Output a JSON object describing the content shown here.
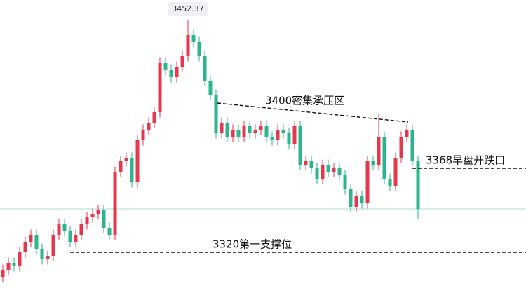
{
  "chart_data": {
    "type": "candlestick",
    "ylim": [
      3292.8,
      3464
    ],
    "up_color": "#e5374e",
    "down_color": "#2ab58b",
    "price_line": 3344.8,
    "price_line_color": "#a8dcd2",
    "candles": [
      [
        3306,
        3313,
        3303,
        3310
      ],
      [
        3310,
        3317,
        3307,
        3314
      ],
      [
        3314,
        3317,
        3309,
        3312
      ],
      [
        3312,
        3323,
        3309,
        3320
      ],
      [
        3320,
        3329,
        3317,
        3326
      ],
      [
        3326,
        3333,
        3323,
        3330
      ],
      [
        3330,
        3333,
        3319,
        3322
      ],
      [
        3322,
        3325,
        3313,
        3316
      ],
      [
        3316,
        3321,
        3313,
        3318
      ],
      [
        3318,
        3333,
        3315,
        3330
      ],
      [
        3330,
        3339,
        3327,
        3336
      ],
      [
        3336,
        3339,
        3329,
        3332
      ],
      [
        3332,
        3335,
        3323,
        3326
      ],
      [
        3326,
        3333,
        3323,
        3330
      ],
      [
        3330,
        3339,
        3327,
        3336
      ],
      [
        3336,
        3343,
        3333,
        3340
      ],
      [
        3340,
        3345,
        3337,
        3342
      ],
      [
        3342,
        3347,
        3339,
        3344
      ],
      [
        3344,
        3347,
        3331,
        3334
      ],
      [
        3334,
        3337,
        3327,
        3330
      ],
      [
        3330,
        3369,
        3327,
        3366
      ],
      [
        3366,
        3375,
        3363,
        3372
      ],
      [
        3372,
        3377,
        3369,
        3374
      ],
      [
        3374,
        3377,
        3357,
        3360
      ],
      [
        3360,
        3387,
        3357,
        3384
      ],
      [
        3384,
        3393,
        3381,
        3390
      ],
      [
        3390,
        3397,
        3387,
        3394
      ],
      [
        3394,
        3403,
        3391,
        3400
      ],
      [
        3400,
        3431,
        3397,
        3428
      ],
      [
        3428,
        3431,
        3421,
        3424
      ],
      [
        3424,
        3427,
        3417,
        3420
      ],
      [
        3420,
        3429,
        3417,
        3426
      ],
      [
        3426,
        3435,
        3423,
        3432
      ],
      [
        3432,
        3452.37,
        3429,
        3444
      ],
      [
        3444,
        3447,
        3437,
        3440
      ],
      [
        3440,
        3443,
        3429,
        3432
      ],
      [
        3432,
        3435,
        3415,
        3418
      ],
      [
        3418,
        3421,
        3407,
        3410
      ],
      [
        3410,
        3413,
        3385,
        3388
      ],
      [
        3388,
        3397,
        3385,
        3394
      ],
      [
        3394,
        3397,
        3383,
        3386
      ],
      [
        3386,
        3393,
        3383,
        3390
      ],
      [
        3390,
        3393,
        3383,
        3386
      ],
      [
        3386,
        3395,
        3383,
        3392
      ],
      [
        3392,
        3395,
        3385,
        3388
      ],
      [
        3388,
        3393,
        3385,
        3390
      ],
      [
        3390,
        3395,
        3387,
        3392
      ],
      [
        3392,
        3395,
        3383,
        3386
      ],
      [
        3386,
        3389,
        3381,
        3384
      ],
      [
        3384,
        3393,
        3381,
        3390
      ],
      [
        3390,
        3393,
        3385,
        3388
      ],
      [
        3388,
        3391,
        3379,
        3382
      ],
      [
        3382,
        3395,
        3379,
        3392
      ],
      [
        3392,
        3395,
        3367,
        3370
      ],
      [
        3370,
        3375,
        3367,
        3372
      ],
      [
        3372,
        3375,
        3365,
        3368
      ],
      [
        3368,
        3371,
        3359,
        3362
      ],
      [
        3362,
        3373,
        3359,
        3370
      ],
      [
        3370,
        3373,
        3363,
        3366
      ],
      [
        3366,
        3371,
        3363,
        3368
      ],
      [
        3368,
        3371,
        3361,
        3364
      ],
      [
        3364,
        3367,
        3353,
        3356
      ],
      [
        3356,
        3359,
        3343,
        3346
      ],
      [
        3346,
        3355,
        3343,
        3352
      ],
      [
        3352,
        3355,
        3345,
        3348
      ],
      [
        3348,
        3375,
        3345,
        3372
      ],
      [
        3372,
        3375,
        3367,
        3370
      ],
      [
        3370,
        3399,
        3367,
        3386
      ],
      [
        3386,
        3389,
        3359,
        3362
      ],
      [
        3362,
        3365,
        3355,
        3358
      ],
      [
        3358,
        3377,
        3355,
        3374
      ],
      [
        3374,
        3389,
        3371,
        3386
      ],
      [
        3386,
        3393,
        3383,
        3390
      ],
      [
        3390,
        3393,
        3369,
        3372
      ],
      [
        3372,
        3375,
        3339,
        3344.8
      ]
    ],
    "annotations": [
      {
        "text": "3400密集承压区",
        "line": [
          3405.2,
          3394.4
        ]
      },
      {
        "text": "3368早盘开跌口",
        "line": [
          3368,
          3368
        ]
      },
      {
        "text": "3320第一支撑位",
        "line": [
          3320,
          3320
        ]
      }
    ]
  }
}
